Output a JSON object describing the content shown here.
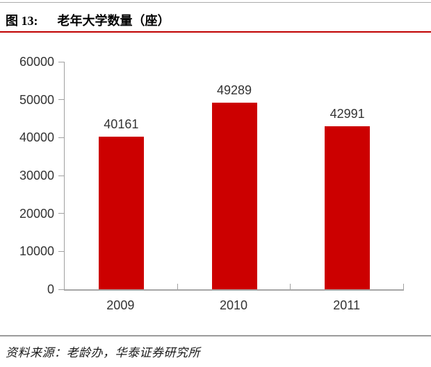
{
  "header": {
    "figure_label": "图 13:",
    "title": "老年大学数量（座）"
  },
  "chart_data": {
    "type": "bar",
    "title": "老年大学数量（座）",
    "categories": [
      "2009",
      "2010",
      "2011"
    ],
    "values": [
      40161,
      49289,
      42991
    ],
    "xlabel": "",
    "ylabel": "",
    "ylim": [
      0,
      60000
    ],
    "yticks": [
      0,
      10000,
      20000,
      30000,
      40000,
      50000,
      60000
    ],
    "grid": false,
    "legend": "none",
    "data_labels": true,
    "bar_color": "#cc0000"
  },
  "footer": {
    "source": "资料来源：老龄办，华泰证券研究所"
  },
  "colors": {
    "bar": "#cc0000",
    "title_rule": "#c00000",
    "top_rule": "#ababab",
    "bottom_rule": "#9a9a9a",
    "axis": "#a0a0a0",
    "label_text": "#333333"
  }
}
